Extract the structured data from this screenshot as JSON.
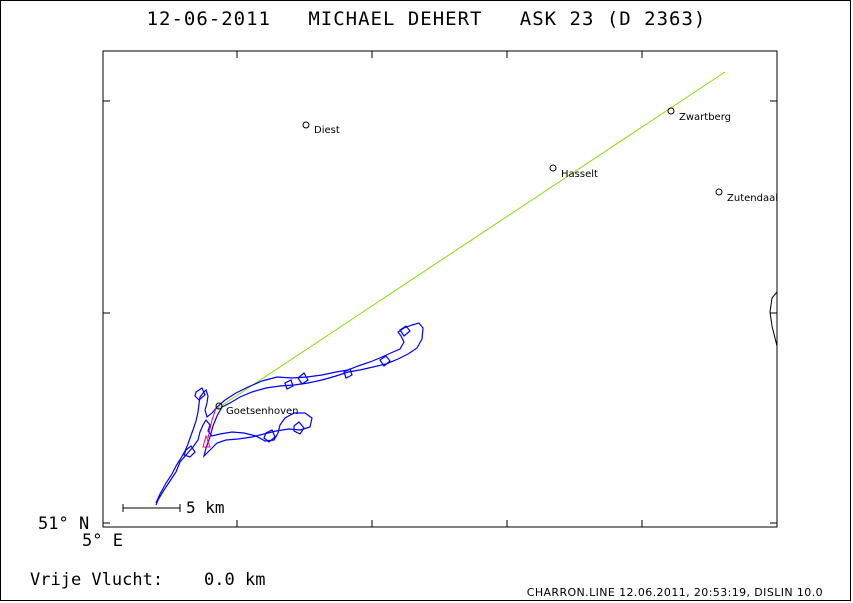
{
  "title": "12-06-2011   MICHAEL DEHERT   ASK 23 (D 2363)",
  "axis": {
    "lat_label": "51° N",
    "lon_label": "5° E"
  },
  "scale": {
    "label": "5 km"
  },
  "distance": {
    "label": "Vrije Vlucht:",
    "value": "0.0 km"
  },
  "footer": "CHARRON.LINE 12.06.2011, 20:53:19, DISLIN 10.0",
  "towns": [
    {
      "name": "Diest"
    },
    {
      "name": "Zwartberg"
    },
    {
      "name": "Hasselt"
    },
    {
      "name": "Zutendaal"
    },
    {
      "name": "Goetsenhoven"
    }
  ],
  "colors": {
    "track": "#0000ff",
    "course_line": "#80e000",
    "start_marker": "#ff0066"
  }
}
